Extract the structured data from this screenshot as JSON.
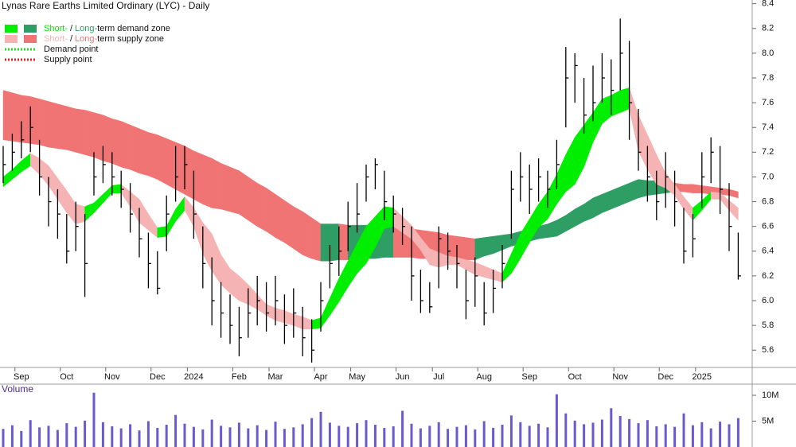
{
  "chart_data": [
    {
      "type": "ohlc",
      "title": "Lynas Rare Earths Limited Ordinary (LYC) - Daily",
      "categories": [
        null,
        null,
        "Sep",
        null,
        null,
        null,
        null,
        "Oct",
        null,
        null,
        null,
        null,
        "Nov",
        null,
        null,
        null,
        null,
        "Dec",
        null,
        null,
        null,
        "2024",
        null,
        null,
        null,
        null,
        "Feb",
        null,
        null,
        null,
        "Mar",
        null,
        null,
        null,
        null,
        "Apr",
        null,
        null,
        null,
        "May",
        null,
        null,
        null,
        null,
        "Jun",
        null,
        null,
        null,
        "Jul",
        null,
        null,
        null,
        null,
        "Aug",
        null,
        null,
        null,
        null,
        "Sep",
        null,
        null,
        null,
        null,
        "Oct",
        null,
        null,
        null,
        null,
        "Nov",
        null,
        null,
        null,
        null,
        "Dec",
        null,
        null,
        null,
        "2025",
        null,
        null,
        null,
        null
      ],
      "high": [
        7.25,
        7.35,
        7.45,
        7.57,
        7.3,
        7.0,
        6.9,
        6.7,
        6.8,
        6.7,
        7.2,
        7.25,
        7.2,
        7.05,
        6.95,
        6.75,
        6.55,
        6.4,
        6.85,
        7.25,
        7.25,
        7.05,
        6.6,
        6.35,
        6.15,
        6.05,
        5.95,
        6.1,
        6.2,
        6.15,
        6.2,
        6.05,
        6.1,
        5.95,
        5.85,
        6.15,
        6.45,
        6.6,
        6.8,
        6.95,
        7.1,
        7.15,
        7.05,
        6.85,
        6.75,
        6.6,
        6.25,
        6.15,
        6.6,
        6.55,
        6.45,
        6.25,
        6.35,
        6.15,
        6.25,
        6.45,
        7.05,
        7.2,
        7.1,
        7.15,
        7.05,
        7.3,
        8.05,
        8.0,
        7.8,
        7.9,
        8.0,
        7.95,
        8.28,
        8.1,
        7.55,
        7.25,
        7.05,
        7.2,
        7.05,
        6.75,
        6.7,
        7.2,
        7.32,
        7.25,
        6.95,
        6.55
      ],
      "low": [
        6.95,
        7.05,
        7.15,
        7.2,
        6.85,
        6.6,
        6.5,
        6.3,
        6.4,
        6.03,
        6.85,
        6.95,
        6.85,
        6.75,
        6.55,
        6.35,
        6.1,
        6.05,
        6.4,
        6.8,
        6.9,
        6.5,
        6.1,
        5.8,
        5.7,
        5.65,
        5.55,
        5.7,
        5.8,
        5.75,
        5.8,
        5.65,
        5.7,
        5.55,
        5.5,
        5.75,
        6.1,
        6.2,
        6.4,
        6.55,
        6.8,
        6.9,
        6.65,
        6.55,
        6.45,
        6.0,
        5.9,
        5.9,
        6.1,
        6.25,
        6.1,
        5.85,
        5.95,
        5.8,
        5.9,
        6.1,
        6.5,
        6.8,
        6.7,
        6.8,
        6.75,
        6.9,
        7.4,
        7.6,
        7.35,
        7.45,
        7.6,
        7.5,
        7.7,
        7.3,
        7.05,
        6.8,
        6.65,
        6.75,
        6.6,
        6.3,
        6.35,
        6.75,
        6.95,
        6.7,
        6.4,
        6.17
      ],
      "close": [
        7.1,
        7.2,
        7.3,
        7.4,
        7.0,
        6.8,
        6.7,
        6.4,
        6.6,
        6.3,
        7.0,
        7.1,
        7.0,
        6.9,
        6.7,
        6.5,
        6.3,
        6.1,
        6.7,
        7.0,
        7.1,
        6.7,
        6.3,
        6.0,
        5.9,
        5.8,
        5.7,
        5.9,
        6.0,
        5.9,
        6.0,
        5.8,
        5.9,
        5.7,
        5.6,
        6.0,
        6.3,
        6.4,
        6.6,
        6.7,
        7.0,
        7.1,
        6.8,
        6.7,
        6.6,
        6.2,
        6.0,
        5.95,
        6.5,
        6.4,
        6.3,
        6.0,
        6.2,
        5.9,
        6.1,
        6.3,
        6.9,
        7.0,
        6.9,
        7.0,
        6.9,
        7.1,
        7.8,
        7.9,
        7.5,
        7.6,
        7.8,
        7.7,
        8.0,
        7.6,
        7.2,
        7.0,
        6.8,
        7.0,
        6.8,
        6.4,
        6.5,
        7.0,
        7.2,
        6.9,
        6.6,
        6.2
      ],
      "color": "#000000",
      "bands": [
        {
          "top": [
            7.7,
            7.68,
            7.66,
            7.65,
            7.63,
            7.61,
            7.59,
            7.57,
            7.55,
            7.54,
            7.52,
            7.5,
            7.47,
            7.45,
            7.42,
            7.39,
            7.36,
            7.34,
            7.31,
            7.28,
            7.25,
            7.21,
            7.18,
            7.15,
            7.11,
            7.08,
            7.05,
            7.0,
            6.95,
            6.91,
            6.86,
            6.81,
            6.76,
            6.72,
            6.67,
            6.62,
            6.62,
            6.62,
            6.61,
            6.61,
            6.61,
            6.61,
            6.6,
            6.6,
            6.59,
            6.58,
            6.57,
            6.56,
            6.55,
            6.53,
            6.52,
            6.51,
            6.5,
            6.51,
            6.52,
            6.53,
            6.54,
            6.56,
            6.58,
            6.6,
            6.62,
            6.65,
            6.69,
            6.74,
            6.78,
            6.83,
            6.86,
            6.89,
            6.92,
            6.95,
            6.98,
            6.97,
            6.97,
            6.96,
            6.95,
            6.94,
            6.94,
            6.93,
            6.92,
            6.91,
            6.9,
            6.88
          ],
          "bottom": [
            7.3,
            7.29,
            7.28,
            7.27,
            7.26,
            7.24,
            7.23,
            7.22,
            7.2,
            7.18,
            7.16,
            7.13,
            7.11,
            7.08,
            7.06,
            7.03,
            7.01,
            6.98,
            6.94,
            6.9,
            6.86,
            6.82,
            6.78,
            6.75,
            6.74,
            6.72,
            6.7,
            6.65,
            6.6,
            6.56,
            6.51,
            6.47,
            6.42,
            6.37,
            6.34,
            6.32,
            6.32,
            6.33,
            6.33,
            6.34,
            6.34,
            6.34,
            6.35,
            6.35,
            6.35,
            6.35,
            6.34,
            6.34,
            6.34,
            6.34,
            6.33,
            6.33,
            6.33,
            6.36,
            6.38,
            6.41,
            6.44,
            6.46,
            6.48,
            6.5,
            6.51,
            6.52,
            6.56,
            6.6,
            6.64,
            6.67,
            6.71,
            6.74,
            6.77,
            6.8,
            6.83,
            6.85,
            6.86,
            6.87,
            6.88,
            6.88,
            6.87,
            6.87,
            6.86,
            6.86,
            6.85,
            6.83
          ],
          "rising_color": "#2e9e64",
          "falling_color": "#f07474"
        },
        {
          "top": [
            7.0,
            7.06,
            7.13,
            7.19,
            7.15,
            7.09,
            6.99,
            6.89,
            6.78,
            6.76,
            6.79,
            6.86,
            6.93,
            6.94,
            6.88,
            6.82,
            6.7,
            6.59,
            6.6,
            6.74,
            6.84,
            6.75,
            6.63,
            6.54,
            6.37,
            6.26,
            6.2,
            6.13,
            6.05,
            5.97,
            5.94,
            5.92,
            5.89,
            5.87,
            5.84,
            5.86,
            6.02,
            6.18,
            6.32,
            6.46,
            6.6,
            6.68,
            6.76,
            6.75,
            6.68,
            6.61,
            6.51,
            6.42,
            6.39,
            6.36,
            6.35,
            6.33,
            6.31,
            6.28,
            6.25,
            6.22,
            6.38,
            6.54,
            6.66,
            6.78,
            6.88,
            7.02,
            7.18,
            7.32,
            7.42,
            7.52,
            7.63,
            7.66,
            7.7,
            7.72,
            7.5,
            7.34,
            7.18,
            7.03,
            6.94,
            6.84,
            6.75,
            6.81,
            6.88,
            6.87,
            6.81,
            6.75
          ],
          "bottom": [
            6.92,
            6.98,
            7.04,
            7.09,
            7.02,
            6.93,
            6.82,
            6.71,
            6.62,
            6.64,
            6.71,
            6.79,
            6.87,
            6.87,
            6.76,
            6.63,
            6.57,
            6.51,
            6.52,
            6.64,
            6.73,
            6.6,
            6.38,
            6.24,
            6.13,
            6.06,
            6.0,
            5.97,
            5.93,
            5.88,
            5.84,
            5.82,
            5.8,
            5.77,
            5.77,
            5.78,
            5.88,
            5.99,
            6.11,
            6.22,
            6.3,
            6.43,
            6.58,
            6.6,
            6.55,
            6.5,
            6.41,
            6.29,
            6.27,
            6.29,
            6.29,
            6.25,
            6.21,
            6.19,
            6.17,
            6.15,
            6.22,
            6.34,
            6.47,
            6.59,
            6.66,
            6.78,
            6.88,
            6.94,
            7.08,
            7.28,
            7.43,
            7.49,
            7.52,
            7.55,
            7.21,
            7.06,
            6.94,
            6.91,
            6.85,
            6.74,
            6.65,
            6.73,
            6.82,
            6.82,
            6.73,
            6.65
          ],
          "rising_color": "#00ee00",
          "falling_color": "#f6b3b3"
        }
      ],
      "legend": {
        "zones": [
          {
            "short": "Short-",
            "separator": "/",
            "long": "Long-",
            "rest": "term demand zone"
          },
          {
            "short": "Short-",
            "separator": "/",
            "long": "Long-",
            "rest": "term supply zone"
          }
        ],
        "points": [
          {
            "label": "Demand point",
            "color": "#22dd22"
          },
          {
            "label": "Supply point",
            "color": "#dd2222"
          }
        ]
      },
      "ylim": [
        5.46,
        8.43
      ],
      "yticks": [
        5.6,
        5.8,
        {
          "value": 6,
          "label": "6.0"
        },
        6.2,
        6.4,
        6.6,
        6.8,
        {
          "value": 7,
          "label": "7.0"
        },
        7.2,
        7.4,
        7.6,
        7.8,
        {
          "value": 8,
          "label": "8.0"
        },
        8.2,
        8.4
      ]
    },
    {
      "type": "bar",
      "title": "Volume",
      "values": [
        3500000,
        4200000,
        3100000,
        5200000,
        3800000,
        4100000,
        3300000,
        4600000,
        3900000,
        5100000,
        10500000,
        4800000,
        4000000,
        3600000,
        4400000,
        3200000,
        5000000,
        3700000,
        4300000,
        6200000,
        4500000,
        3900000,
        3400000,
        5300000,
        4100000,
        3800000,
        4700000,
        3600000,
        4200000,
        3300000,
        4900000,
        3500000,
        3800000,
        4400000,
        5600000,
        6800000,
        4700000,
        4100000,
        3900000,
        4600000,
        5200000,
        4300000,
        3700000,
        4000000,
        7000000,
        4500000,
        3600000,
        4100000,
        4800000,
        3500000,
        3900000,
        4200000,
        3400000,
        5000000,
        3700000,
        4300000,
        6100000,
        4800000,
        4100000,
        4500000,
        3800000,
        10200000,
        6500000,
        5100000,
        4400000,
        4700000,
        5300000,
        7500000,
        6000000,
        5400000,
        4600000,
        5200000,
        4000000,
        4400000,
        3900000,
        6500000,
        4200000,
        4800000,
        3600000,
        4900000,
        4400000,
        5600000
      ],
      "color": "#6a5acd",
      "ylim": [
        0,
        12000000
      ],
      "yticks": [
        {
          "value": 5000000,
          "label": "5M"
        },
        {
          "value": 10000000,
          "label": "10M"
        }
      ]
    }
  ]
}
